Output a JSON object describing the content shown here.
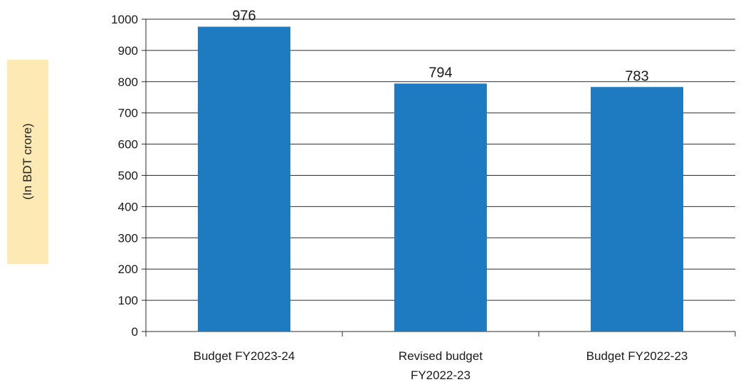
{
  "chart_data": {
    "type": "bar",
    "categories": [
      [
        "Budget FY2023-24"
      ],
      [
        "Revised budget",
        "FY2022-23"
      ],
      [
        "Budget FY2022-23"
      ]
    ],
    "values": [
      976,
      794,
      783
    ],
    "data_labels": [
      "976",
      "794",
      "783"
    ],
    "ylabel": "(In BDT crore)",
    "ylim": [
      0,
      1000
    ],
    "yticks": [
      0,
      100,
      200,
      300,
      400,
      500,
      600,
      700,
      800,
      900,
      1000
    ],
    "grid": true,
    "bar_color": "#1f7bc1",
    "ylabel_background": "#fde9b4"
  }
}
